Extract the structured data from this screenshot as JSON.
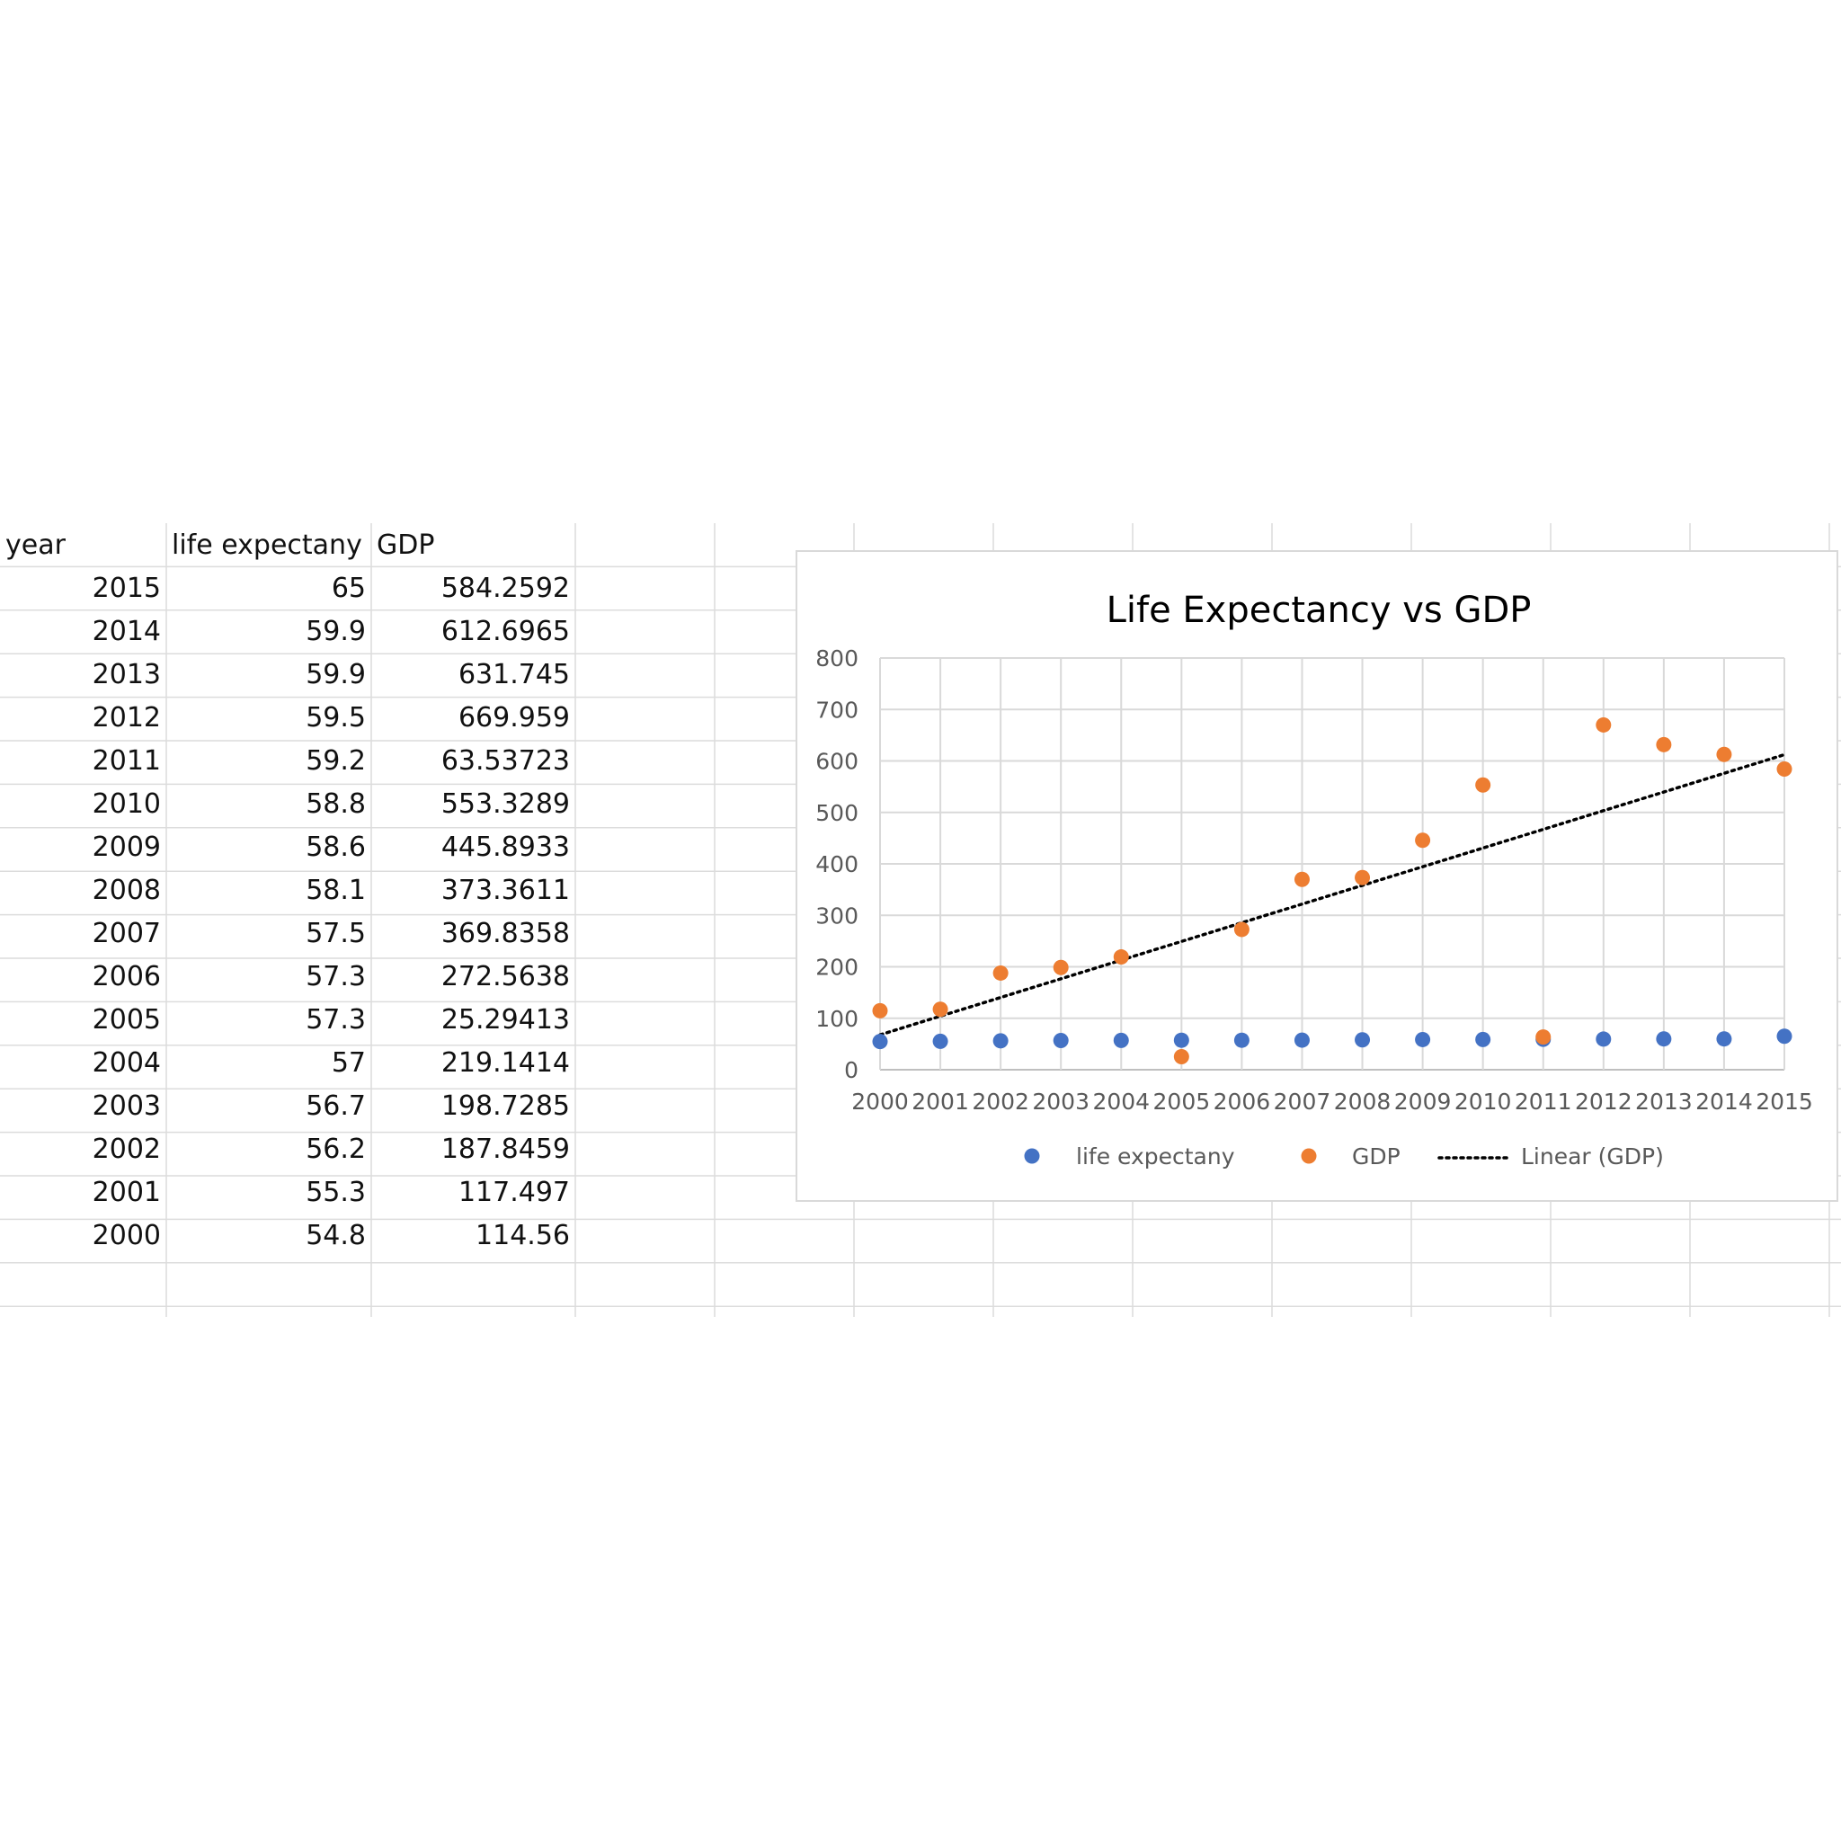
{
  "sheet": {
    "headers": [
      "year",
      "life expectany",
      "GDP"
    ],
    "rows": [
      [
        "2015",
        "65",
        "584.2592"
      ],
      [
        "2014",
        "59.9",
        "612.6965"
      ],
      [
        "2013",
        "59.9",
        "631.745"
      ],
      [
        "2012",
        "59.5",
        "669.959"
      ],
      [
        "2011",
        "59.2",
        "63.53723"
      ],
      [
        "2010",
        "58.8",
        "553.3289"
      ],
      [
        "2009",
        "58.6",
        "445.8933"
      ],
      [
        "2008",
        "58.1",
        "373.3611"
      ],
      [
        "2007",
        "57.5",
        "369.8358"
      ],
      [
        "2006",
        "57.3",
        "272.5638"
      ],
      [
        "2005",
        "57.3",
        "25.29413"
      ],
      [
        "2004",
        "57",
        "219.1414"
      ],
      [
        "2003",
        "56.7",
        "198.7285"
      ],
      [
        "2002",
        "56.2",
        "187.8459"
      ],
      [
        "2001",
        "55.3",
        "117.497"
      ],
      [
        "2000",
        "54.8",
        "114.56"
      ]
    ]
  },
  "chart_data": {
    "type": "scatter",
    "title": "Life Expectancy vs GDP",
    "x": [
      2000,
      2001,
      2002,
      2003,
      2004,
      2005,
      2006,
      2007,
      2008,
      2009,
      2010,
      2011,
      2012,
      2013,
      2014,
      2015
    ],
    "xlim": [
      2000,
      2015
    ],
    "ylim": [
      0,
      800
    ],
    "yticks": [
      0,
      100,
      200,
      300,
      400,
      500,
      600,
      700,
      800
    ],
    "grid": true,
    "legend_position": "bottom",
    "series": [
      {
        "name": "life expectany",
        "color": "#4472c4",
        "values": [
          54.8,
          55.3,
          56.2,
          56.7,
          57,
          57.3,
          57.3,
          57.5,
          58.1,
          58.6,
          58.8,
          59.2,
          59.5,
          59.9,
          59.9,
          65
        ]
      },
      {
        "name": "GDP",
        "color": "#ed7d31",
        "values": [
          114.56,
          117.497,
          187.8459,
          198.7285,
          219.1414,
          25.29413,
          272.5638,
          369.8358,
          373.3611,
          445.8933,
          553.3289,
          63.53723,
          669.959,
          631.745,
          612.6965,
          584.2592
        ]
      }
    ],
    "trendline": {
      "name": "Linear (GDP)",
      "of": "GDP",
      "type": "linear",
      "color": "#000000"
    }
  }
}
